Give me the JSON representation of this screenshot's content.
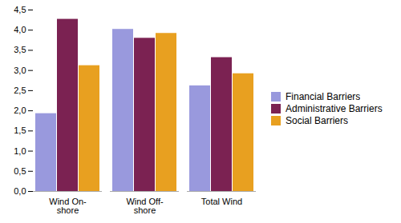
{
  "chart_data": {
    "type": "bar",
    "categories": [
      "Wind On-\nshore",
      "Wind Off-\nshore",
      "Total Wind"
    ],
    "series": [
      {
        "name": "Financial Barriers",
        "color": "#9999dd",
        "values": [
          1.93,
          4.02,
          2.62
        ]
      },
      {
        "name": "Administrative Barriers",
        "color": "#7b2252",
        "values": [
          4.27,
          3.8,
          3.32
        ]
      },
      {
        "name": "Social Barriers",
        "color": "#e8a020",
        "values": [
          3.12,
          3.92,
          2.92
        ]
      }
    ],
    "ylim": [
      0,
      4.5
    ],
    "yticks": [
      {
        "value": 0.0,
        "label": "0,0"
      },
      {
        "value": 0.5,
        "label": "0,5"
      },
      {
        "value": 1.0,
        "label": "1,0"
      },
      {
        "value": 1.5,
        "label": "1,5"
      },
      {
        "value": 2.0,
        "label": "2,0"
      },
      {
        "value": 2.5,
        "label": "2,5"
      },
      {
        "value": 3.0,
        "label": "3,0"
      },
      {
        "value": 3.5,
        "label": "3,5"
      },
      {
        "value": 4.0,
        "label": "4,0"
      },
      {
        "value": 4.5,
        "label": "4,5"
      }
    ],
    "grid": false,
    "legend": "right"
  }
}
